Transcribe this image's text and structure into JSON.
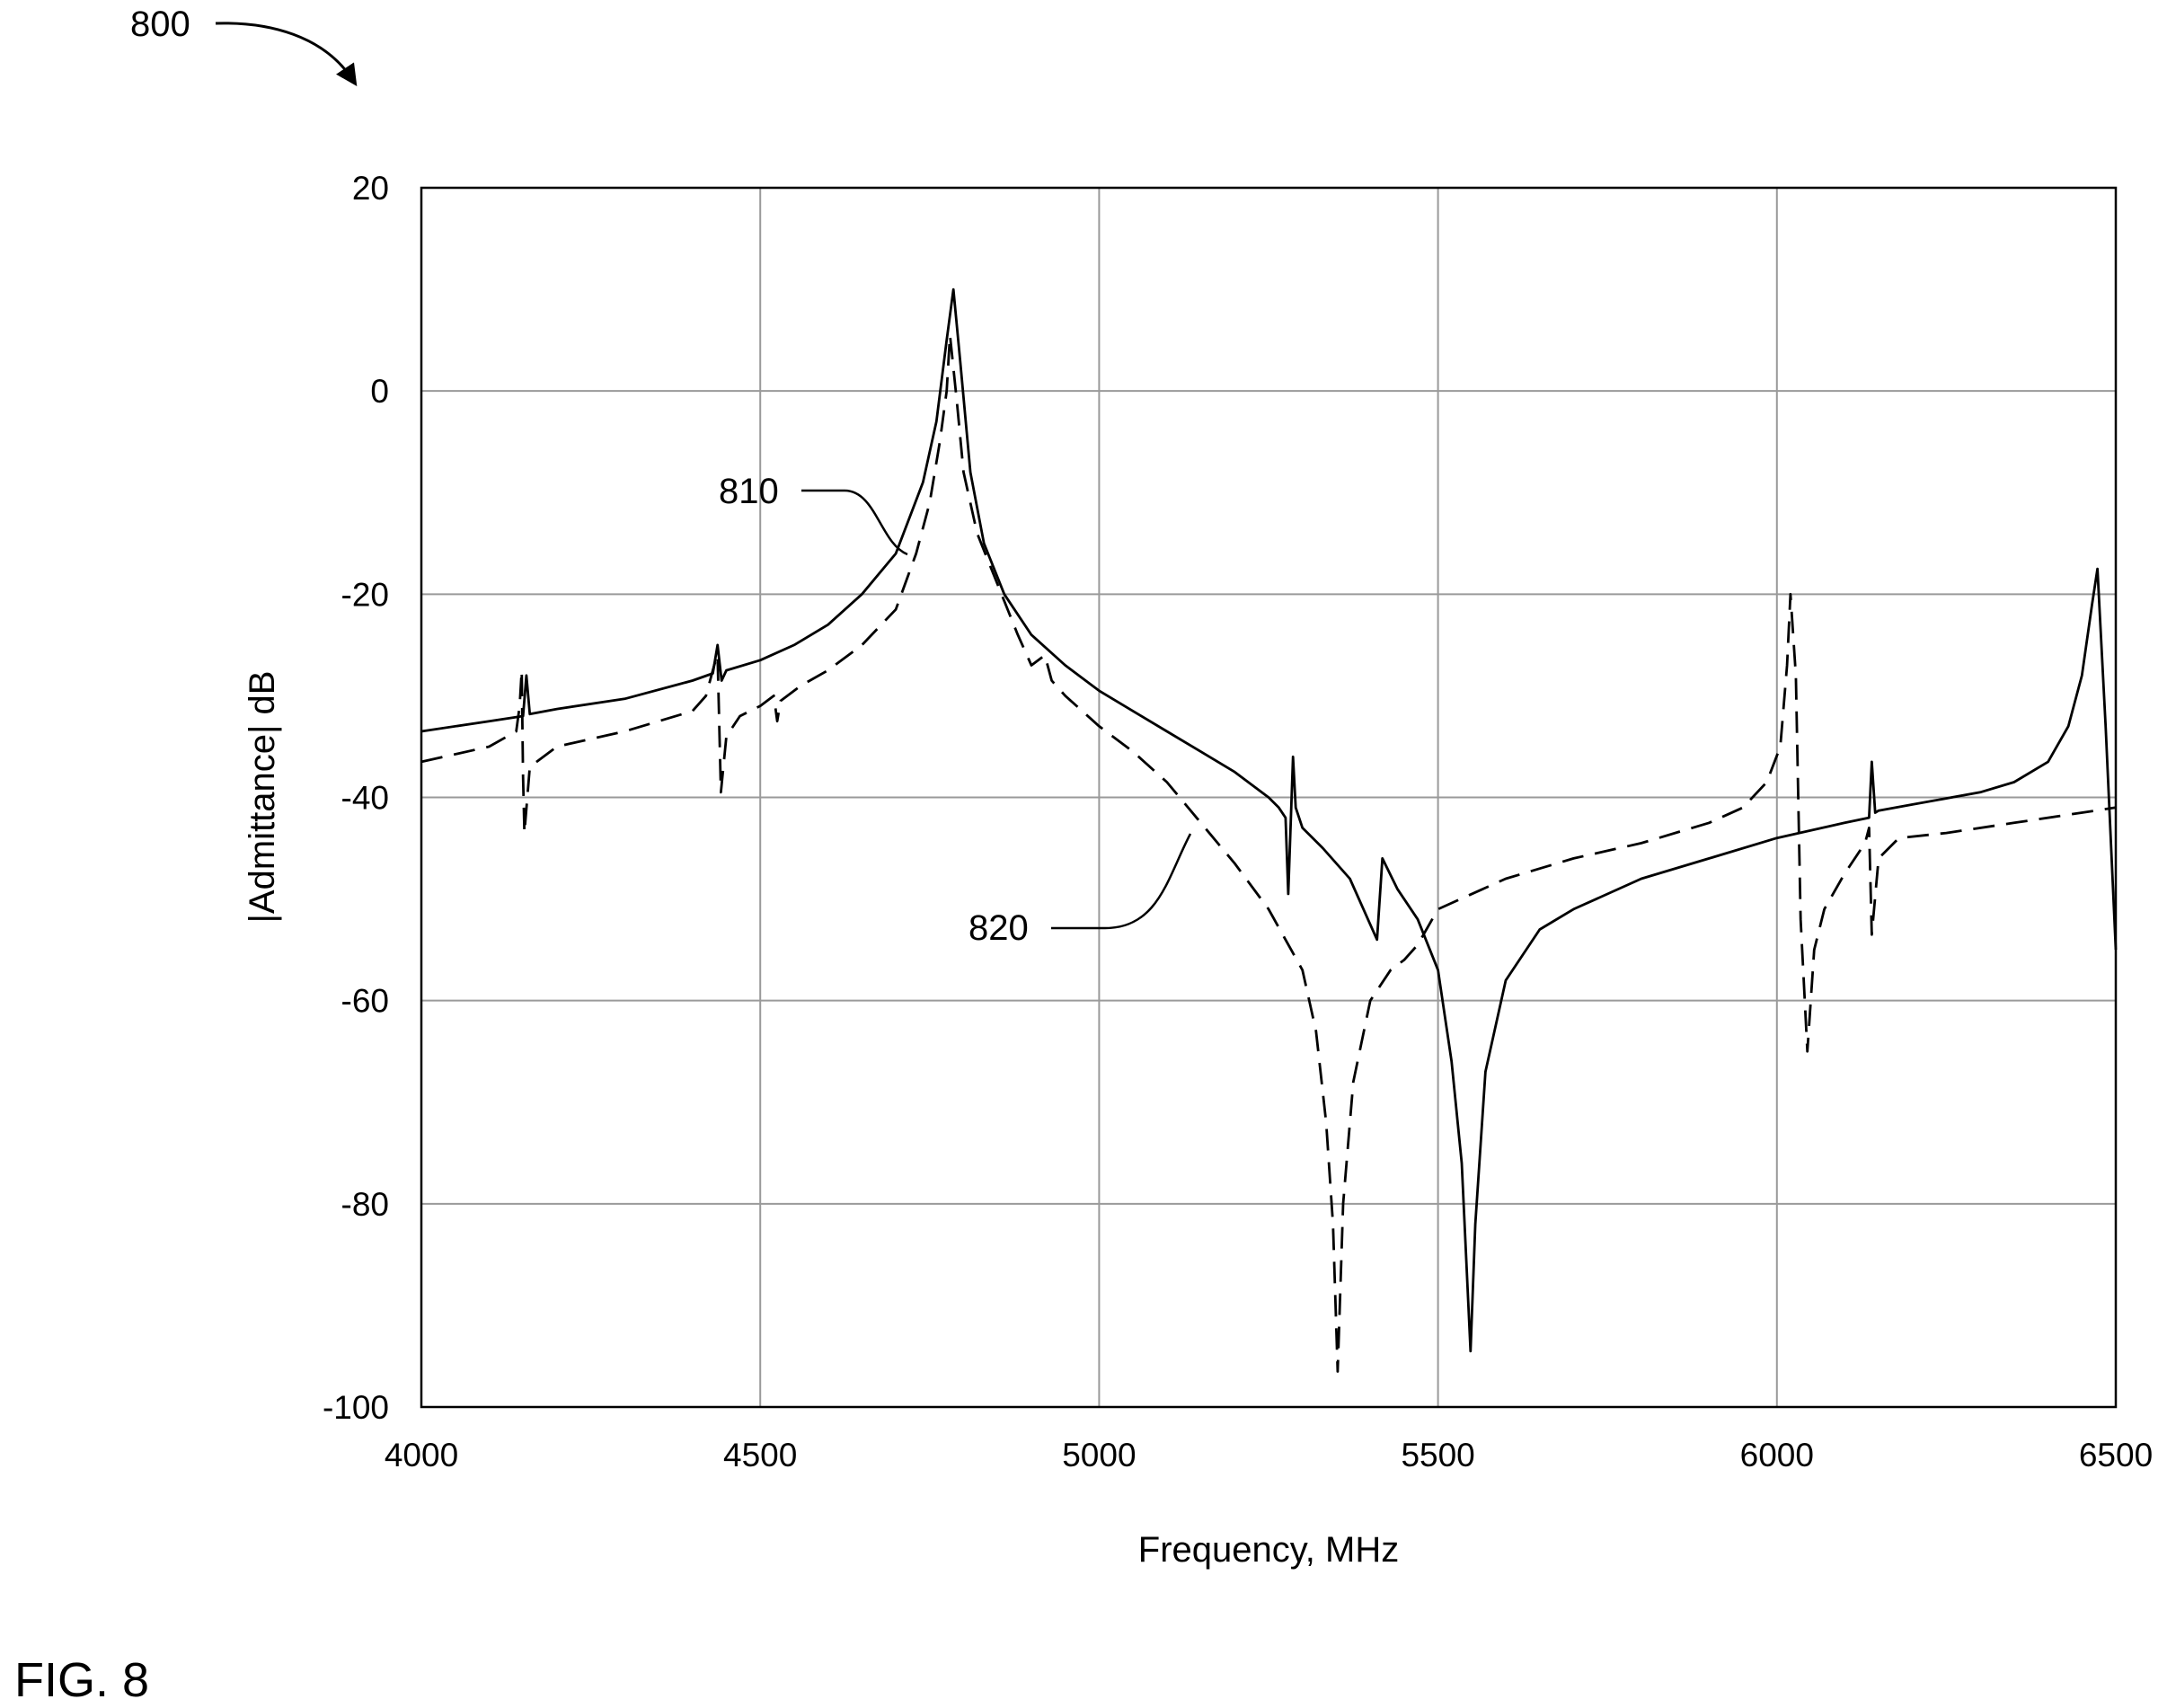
{
  "figure": {
    "ref_number": "800",
    "label": "FIG. 8"
  },
  "chart_data": {
    "type": "line",
    "title": "",
    "xlabel": "Frequency, MHz",
    "ylabel": "|Admittance| dB",
    "xlim": [
      4000,
      6500
    ],
    "ylim": [
      -100,
      20
    ],
    "xticks": [
      4000,
      4500,
      5000,
      5500,
      6000,
      6500
    ],
    "yticks": [
      -100,
      -80,
      -60,
      -40,
      -20,
      0,
      20
    ],
    "xtick_labels": [
      "4000",
      "4500",
      "5000",
      "5500",
      "6000",
      "6500"
    ],
    "ytick_labels": [
      "-100",
      "-80",
      "-60",
      "-40",
      "-20",
      "0",
      "20"
    ],
    "grid": true,
    "legend": "none",
    "series": [
      {
        "ref_label": "810",
        "style": "solid",
        "color": "#000000",
        "points": [
          [
            4000,
            -33.5
          ],
          [
            4100,
            -32.5
          ],
          [
            4150,
            -32
          ],
          [
            4155,
            -28
          ],
          [
            4160,
            -31.8
          ],
          [
            4200,
            -31.3
          ],
          [
            4300,
            -30.3
          ],
          [
            4400,
            -28.5
          ],
          [
            4430,
            -27.8
          ],
          [
            4437,
            -25
          ],
          [
            4443,
            -28.5
          ],
          [
            4450,
            -27.5
          ],
          [
            4500,
            -26.5
          ],
          [
            4550,
            -25
          ],
          [
            4600,
            -23
          ],
          [
            4650,
            -20
          ],
          [
            4700,
            -16
          ],
          [
            4740,
            -9
          ],
          [
            4760,
            -3
          ],
          [
            4775,
            5
          ],
          [
            4785,
            10
          ],
          [
            4795,
            3
          ],
          [
            4810,
            -8
          ],
          [
            4830,
            -15
          ],
          [
            4860,
            -20
          ],
          [
            4900,
            -24
          ],
          [
            4950,
            -27
          ],
          [
            5000,
            -29.5
          ],
          [
            5050,
            -31.5
          ],
          [
            5100,
            -33.5
          ],
          [
            5150,
            -35.5
          ],
          [
            5200,
            -37.5
          ],
          [
            5250,
            -40
          ],
          [
            5265,
            -41
          ],
          [
            5275,
            -42
          ],
          [
            5279,
            -49.5
          ],
          [
            5286,
            -36
          ],
          [
            5290,
            -41
          ],
          [
            5300,
            -43
          ],
          [
            5330,
            -45
          ],
          [
            5370,
            -48
          ],
          [
            5410,
            -54
          ],
          [
            5418,
            -46
          ],
          [
            5440,
            -49
          ],
          [
            5470,
            -52
          ],
          [
            5500,
            -57
          ],
          [
            5520,
            -66
          ],
          [
            5535,
            -76
          ],
          [
            5548,
            -94.5
          ],
          [
            5555,
            -82
          ],
          [
            5570,
            -67
          ],
          [
            5600,
            -58
          ],
          [
            5650,
            -53
          ],
          [
            5700,
            -51
          ],
          [
            5800,
            -48
          ],
          [
            5900,
            -46
          ],
          [
            6000,
            -44
          ],
          [
            6100,
            -42.5
          ],
          [
            6136,
            -42
          ],
          [
            6140,
            -36.5
          ],
          [
            6145,
            -41.5
          ],
          [
            6150,
            -41.3
          ],
          [
            6200,
            -40.7
          ],
          [
            6300,
            -39.5
          ],
          [
            6350,
            -38.5
          ],
          [
            6400,
            -36.5
          ],
          [
            6430,
            -33
          ],
          [
            6450,
            -28
          ],
          [
            6465,
            -21
          ],
          [
            6473,
            -17.5
          ],
          [
            6485,
            -33
          ],
          [
            6500,
            -55
          ]
        ]
      },
      {
        "ref_label": "820",
        "style": "dashed",
        "color": "#000000",
        "points": [
          [
            4000,
            -36.5
          ],
          [
            4100,
            -35
          ],
          [
            4140,
            -33.5
          ],
          [
            4145,
            -31
          ],
          [
            4148,
            -27.5
          ],
          [
            4150,
            -38
          ],
          [
            4152,
            -43.5
          ],
          [
            4160,
            -37
          ],
          [
            4200,
            -35
          ],
          [
            4300,
            -33.5
          ],
          [
            4400,
            -31.5
          ],
          [
            4420,
            -30
          ],
          [
            4432,
            -27
          ],
          [
            4437,
            -26
          ],
          [
            4442,
            -39.5
          ],
          [
            4450,
            -34
          ],
          [
            4470,
            -32
          ],
          [
            4500,
            -31
          ],
          [
            4520,
            -30
          ],
          [
            4525,
            -32.5
          ],
          [
            4530,
            -30.5
          ],
          [
            4560,
            -29
          ],
          [
            4600,
            -27.5
          ],
          [
            4650,
            -25
          ],
          [
            4700,
            -21.5
          ],
          [
            4730,
            -16
          ],
          [
            4750,
            -11
          ],
          [
            4765,
            -5
          ],
          [
            4775,
            0
          ],
          [
            4780,
            5.5
          ],
          [
            4790,
            -1
          ],
          [
            4800,
            -8
          ],
          [
            4820,
            -14
          ],
          [
            4850,
            -19
          ],
          [
            4880,
            -24
          ],
          [
            4900,
            -27
          ],
          [
            4920,
            -26
          ],
          [
            4930,
            -28.5
          ],
          [
            4950,
            -30
          ],
          [
            5000,
            -33
          ],
          [
            5050,
            -35.5
          ],
          [
            5100,
            -38.5
          ],
          [
            5150,
            -42.5
          ],
          [
            5200,
            -46.5
          ],
          [
            5250,
            -51
          ],
          [
            5300,
            -57
          ],
          [
            5320,
            -63
          ],
          [
            5335,
            -72
          ],
          [
            5345,
            -82
          ],
          [
            5352,
            -96.5
          ],
          [
            5360,
            -80
          ],
          [
            5375,
            -68
          ],
          [
            5400,
            -60
          ],
          [
            5430,
            -57
          ],
          [
            5450,
            -56
          ],
          [
            5470,
            -54.5
          ],
          [
            5500,
            -51
          ],
          [
            5600,
            -48
          ],
          [
            5700,
            -46
          ],
          [
            5800,
            -44.5
          ],
          [
            5900,
            -42.5
          ],
          [
            5950,
            -41
          ],
          [
            5985,
            -38.5
          ],
          [
            6005,
            -35
          ],
          [
            6015,
            -27
          ],
          [
            6020,
            -20
          ],
          [
            6028,
            -28
          ],
          [
            6035,
            -52
          ],
          [
            6045,
            -65
          ],
          [
            6055,
            -55
          ],
          [
            6070,
            -51
          ],
          [
            6100,
            -47.5
          ],
          [
            6130,
            -44.5
          ],
          [
            6136,
            -43
          ],
          [
            6140,
            -53.5
          ],
          [
            6150,
            -46
          ],
          [
            6180,
            -44
          ],
          [
            6250,
            -43.5
          ],
          [
            6350,
            -42.5
          ],
          [
            6450,
            -41.5
          ],
          [
            6500,
            -41
          ]
        ]
      }
    ]
  }
}
